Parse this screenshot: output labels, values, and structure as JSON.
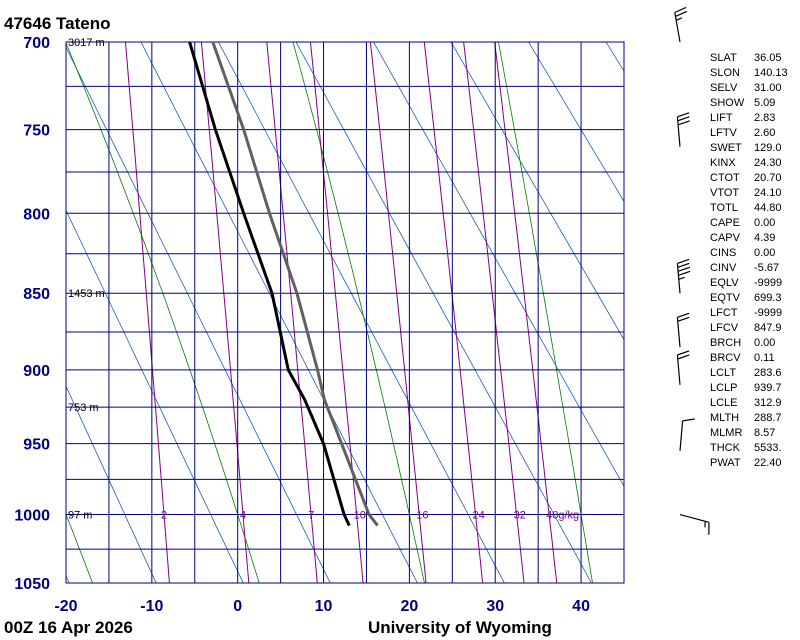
{
  "chart_data": {
    "type": "sounding",
    "title": "47646  Tateno",
    "footer_left": "00Z 16 Apr 2026",
    "footer_right": "University of Wyoming",
    "xlim": [
      -20,
      45
    ],
    "xticks": [
      -20,
      -10,
      0,
      10,
      20,
      30,
      40
    ],
    "ylim": [
      1050,
      700
    ],
    "yticks": [
      700,
      750,
      800,
      850,
      900,
      950,
      1000,
      1050
    ],
    "y_scale": "power",
    "y_exponent": 0.286,
    "grid": true,
    "series": [
      {
        "color": "#000000",
        "pressure": [
          700,
          750,
          800,
          850,
          900,
          920,
          950,
          1000,
          1008
        ],
        "values": [
          -5.6,
          -2.6,
          0.7,
          4.0,
          5.9,
          7.8,
          10.0,
          12.4,
          13.0
        ]
      },
      {
        "color": "#606060",
        "pressure": [
          700,
          750,
          800,
          850,
          900,
          920,
          950,
          1000,
          1008
        ],
        "values": [
          -2.9,
          0.7,
          3.7,
          6.9,
          9.3,
          10.1,
          12.1,
          15.3,
          16.3
        ]
      }
    ],
    "height_labels": [
      {
        "pressure": 700,
        "label": "3017 m"
      },
      {
        "pressure": 850,
        "label": "1453 m"
      },
      {
        "pressure": 925,
        "label": "753 m"
      },
      {
        "pressure": 1000,
        "label": "97 m"
      }
    ],
    "mixing_ratio_labels": [
      2,
      4,
      7,
      10,
      16,
      24,
      32,
      {
        "value": 40,
        "label": "40g/kg"
      }
    ],
    "wind_barbs": [
      {
        "pressure": 700,
        "direction": 350,
        "speed": 25
      },
      {
        "pressure": 760,
        "direction": 355,
        "speed": 30
      },
      {
        "pressure": 850,
        "direction": 355,
        "speed": 45
      },
      {
        "pressure": 885,
        "direction": 355,
        "speed": 20
      },
      {
        "pressure": 910,
        "direction": 355,
        "speed": 20
      },
      {
        "pressure": 955,
        "direction": 5,
        "speed": 10
      },
      {
        "pressure": 1000,
        "direction": 105,
        "speed": 15
      }
    ],
    "indices": [
      {
        "name": "SLAT",
        "value": "36.05"
      },
      {
        "name": "SLON",
        "value": "140.13"
      },
      {
        "name": "SELV",
        "value": "31.00"
      },
      {
        "name": "SHOW",
        "value": "5.09"
      },
      {
        "name": "LIFT",
        "value": "2.83"
      },
      {
        "name": "LFTV",
        "value": "2.60"
      },
      {
        "name": "SWET",
        "value": "129.0"
      },
      {
        "name": "KINX",
        "value": "24.30"
      },
      {
        "name": "CTOT",
        "value": "20.70"
      },
      {
        "name": "VTOT",
        "value": "24.10"
      },
      {
        "name": "TOTL",
        "value": "44.80"
      },
      {
        "name": "CAPE",
        "value": "0.00"
      },
      {
        "name": "CAPV",
        "value": "4.39"
      },
      {
        "name": "CINS",
        "value": "0.00"
      },
      {
        "name": "CINV",
        "value": "-5.67"
      },
      {
        "name": "EQLV",
        "value": "-9999"
      },
      {
        "name": "EQTV",
        "value": "699.3"
      },
      {
        "name": "LFCT",
        "value": "-9999"
      },
      {
        "name": "LFCV",
        "value": "847.9"
      },
      {
        "name": "BRCH",
        "value": "0.00"
      },
      {
        "name": "BRCV",
        "value": "0.11"
      },
      {
        "name": "LCLT",
        "value": "283.6"
      },
      {
        "name": "LCLP",
        "value": "939.7"
      },
      {
        "name": "LCLE",
        "value": "312.9"
      },
      {
        "name": "MLTH",
        "value": "288.7"
      },
      {
        "name": "MLMR",
        "value": "8.57"
      },
      {
        "name": "THCK",
        "value": "5533."
      },
      {
        "name": "PWAT",
        "value": "22.40"
      }
    ]
  }
}
